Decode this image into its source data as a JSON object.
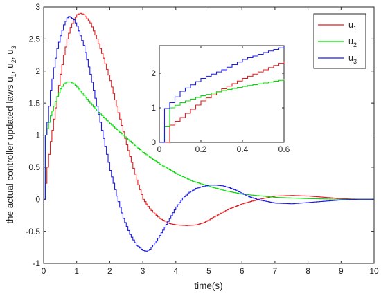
{
  "chart_data": {
    "type": "line",
    "title": "",
    "xlabel": "time(s)",
    "ylabel": "the actual controller updated laws u_1, u_2, u_3",
    "xlim": [
      0,
      10
    ],
    "ylim": [
      -1,
      3
    ],
    "xticks": [
      "0",
      "1",
      "2",
      "3",
      "4",
      "5",
      "6",
      "7",
      "8",
      "9",
      "10"
    ],
    "yticks": [
      "-1",
      "-0.5",
      "0",
      "0.5",
      "1",
      "1.5",
      "2",
      "2.5",
      "3"
    ],
    "grid": false,
    "legend_position": "top-right",
    "step": 0.05,
    "series": [
      {
        "name": "u",
        "sub": "1",
        "color": "#e41a1c",
        "x": [
          0,
          0.1,
          0.2,
          0.3,
          0.4,
          0.5,
          0.6,
          0.7,
          0.8,
          0.9,
          1.0,
          1.1,
          1.2,
          1.4,
          1.6,
          1.8,
          2.0,
          2.2,
          2.5,
          2.8,
          3.0,
          3.2,
          3.5,
          3.8,
          4.0,
          4.3,
          4.6,
          4.8,
          5.0,
          5.3,
          5.6,
          6.0,
          6.5,
          7.0,
          7.5,
          8.0,
          8.5,
          9.0,
          9.5,
          10.0
        ],
        "y": [
          0,
          0.5,
          0.9,
          1.25,
          1.6,
          1.95,
          2.25,
          2.5,
          2.68,
          2.8,
          2.88,
          2.9,
          2.88,
          2.75,
          2.5,
          2.2,
          1.85,
          1.45,
          0.85,
          0.3,
          0,
          -0.15,
          -0.3,
          -0.38,
          -0.4,
          -0.41,
          -0.4,
          -0.37,
          -0.32,
          -0.23,
          -0.15,
          -0.07,
          0,
          0.05,
          0.06,
          0.05,
          0.03,
          0.01,
          0,
          0
        ]
      },
      {
        "name": "u",
        "sub": "2",
        "color": "#00dd00",
        "x": [
          0,
          0.05,
          0.1,
          0.2,
          0.3,
          0.4,
          0.5,
          0.6,
          0.7,
          0.8,
          0.9,
          1.0,
          1.2,
          1.4,
          1.6,
          1.8,
          2.0,
          2.5,
          3.0,
          3.5,
          4.0,
          4.5,
          5.0,
          5.5,
          6.0,
          7.0,
          8.0,
          9.0,
          10.0
        ],
        "y": [
          0,
          1.0,
          1.1,
          1.3,
          1.45,
          1.6,
          1.72,
          1.8,
          1.83,
          1.83,
          1.8,
          1.75,
          1.62,
          1.5,
          1.38,
          1.28,
          1.18,
          0.95,
          0.73,
          0.55,
          0.4,
          0.28,
          0.2,
          0.13,
          0.08,
          0.03,
          0.01,
          0,
          0
        ]
      },
      {
        "name": "u",
        "sub": "3",
        "color": "#1a1aee",
        "x": [
          0,
          0.05,
          0.1,
          0.2,
          0.3,
          0.4,
          0.5,
          0.6,
          0.7,
          0.75,
          0.8,
          0.9,
          1.0,
          1.2,
          1.4,
          1.6,
          1.8,
          2.0,
          2.2,
          2.4,
          2.6,
          2.8,
          3.0,
          3.1,
          3.2,
          3.4,
          3.6,
          3.8,
          4.0,
          4.2,
          4.4,
          4.6,
          4.8,
          5.0,
          5.2,
          5.4,
          5.6,
          5.8,
          6.0,
          6.2,
          6.5,
          7.0,
          7.5,
          8.0,
          8.5,
          9.0,
          9.5,
          10.0
        ],
        "y": [
          0,
          1.0,
          1.2,
          1.7,
          2.05,
          2.35,
          2.55,
          2.72,
          2.83,
          2.85,
          2.84,
          2.8,
          2.7,
          2.4,
          1.95,
          1.45,
          0.95,
          0.45,
          0.05,
          -0.3,
          -0.55,
          -0.72,
          -0.8,
          -0.81,
          -0.78,
          -0.65,
          -0.48,
          -0.3,
          -0.12,
          0.02,
          0.11,
          0.17,
          0.2,
          0.22,
          0.22,
          0.21,
          0.18,
          0.14,
          0.09,
          0.04,
          -0.01,
          -0.06,
          -0.07,
          -0.05,
          -0.03,
          -0.01,
          0,
          0
        ]
      }
    ],
    "inset": {
      "xlim": [
        0,
        0.6
      ],
      "ylim": [
        0,
        2.8
      ],
      "xticks": [
        "0",
        "0.2",
        "0.4",
        "0.6"
      ],
      "yticks": [
        "0",
        "1",
        "2"
      ],
      "step": 0.025,
      "series": [
        {
          "color": "#e41a1c",
          "x": [
            0,
            0.04,
            0.05,
            0.1,
            0.2,
            0.3,
            0.4,
            0.5,
            0.6
          ],
          "y": [
            0,
            0,
            0.5,
            0.72,
            1.2,
            1.55,
            1.85,
            2.1,
            2.35
          ]
        },
        {
          "color": "#00dd00",
          "x": [
            0,
            0.02,
            0.03,
            0.05,
            0.1,
            0.2,
            0.3,
            0.4,
            0.5,
            0.6
          ],
          "y": [
            0,
            0,
            0.9,
            1.0,
            1.15,
            1.35,
            1.5,
            1.62,
            1.72,
            1.82
          ]
        },
        {
          "color": "#1a1aee",
          "x": [
            0,
            0.02,
            0.025,
            0.05,
            0.1,
            0.2,
            0.3,
            0.4,
            0.5,
            0.6
          ],
          "y": [
            0,
            0,
            0.98,
            1.15,
            1.48,
            1.85,
            2.1,
            2.4,
            2.6,
            2.78
          ]
        }
      ]
    }
  }
}
